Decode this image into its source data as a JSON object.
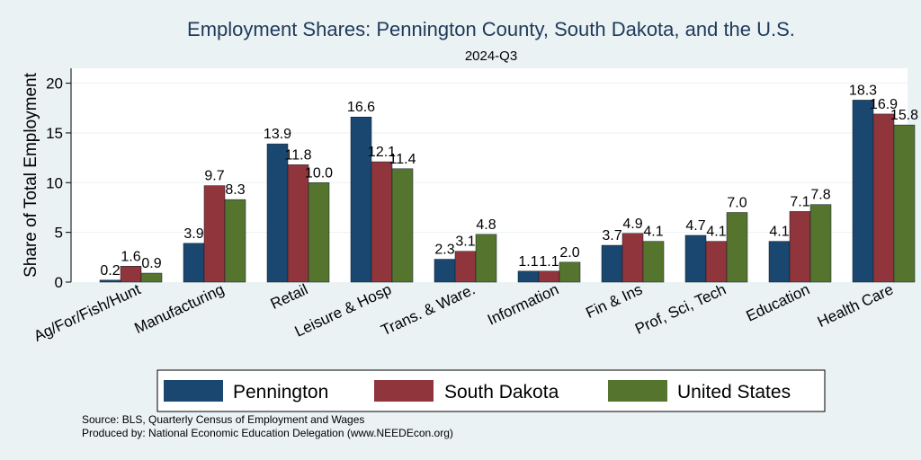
{
  "chart_data": {
    "type": "bar",
    "title": "Employment Shares: Pennington County, South Dakota, and the U.S.",
    "subtitle": "2024-Q3",
    "xlabel": "",
    "ylabel": "Share of Total Employment",
    "ylim": [
      0,
      21.5
    ],
    "yticks": [
      0,
      5,
      10,
      15,
      20
    ],
    "categories": [
      "Ag/For/Fish/Hunt",
      "Manufacturing",
      "Retail",
      "Leisure & Hosp",
      "Trans. & Ware.",
      "Information",
      "Fin & Ins",
      "Prof, Sci, Tech",
      "Education",
      "Health Care"
    ],
    "series": [
      {
        "name": "Pennington",
        "color": "#1a476f",
        "values": [
          0.2,
          3.9,
          13.9,
          16.6,
          2.3,
          1.1,
          3.7,
          4.7,
          4.1,
          18.3
        ],
        "labels": [
          "0.2",
          "3.9",
          "13.9",
          "16.6",
          "2.3",
          "1.1",
          "3.7",
          "4.7",
          "4.1",
          "18.3"
        ]
      },
      {
        "name": "South Dakota",
        "color": "#90353b",
        "values": [
          1.6,
          9.7,
          11.8,
          12.1,
          3.1,
          1.1,
          4.9,
          4.1,
          7.1,
          16.9
        ],
        "labels": [
          "1.6",
          "9.7",
          "11.8",
          "12.1",
          "3.1",
          "1.1",
          "4.9",
          "4.1",
          "7.1",
          "16.9"
        ]
      },
      {
        "name": "United States",
        "color": "#55752f",
        "values": [
          0.9,
          8.3,
          10.0,
          11.4,
          4.8,
          2.0,
          4.1,
          7.0,
          7.8,
          15.8
        ],
        "labels": [
          "0.9",
          "8.3",
          "10.0",
          "11.4",
          "4.8",
          "2.0",
          "4.1",
          "7.0",
          "7.8",
          "15.8"
        ]
      }
    ],
    "legend_position": "bottom",
    "grid": true
  },
  "notes": {
    "source": "Source: BLS, Quarterly Census of Employment and Wages",
    "produced_by": "Produced by: National Economic Education Delegation (www.NEEDEcon.org)"
  }
}
